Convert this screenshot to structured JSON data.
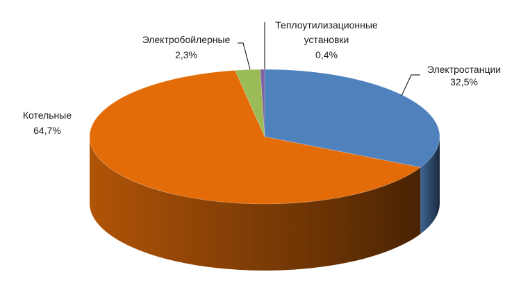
{
  "chart_data": {
    "type": "pie",
    "title": "",
    "slices": [
      {
        "label": "Электростанции",
        "value": 32.5,
        "value_label": "32,5%",
        "color": "#4f81bd"
      },
      {
        "label": "Котельные",
        "value": 64.7,
        "value_label": "64,7%",
        "color": "#e36c09"
      },
      {
        "label": "Электробойлерные",
        "value": 2.3,
        "value_label": "2,3%",
        "color": "#9bbb59"
      },
      {
        "label": "Теплоутилизационные установки",
        "value": 0.4,
        "value_label": "0,4%",
        "color": "#8064a2"
      }
    ],
    "labels": {
      "electro_line1": "Электростанции",
      "electro_line2": "32,5%",
      "kotel_line1": "Котельные",
      "kotel_line2": "64,7%",
      "boiler_line1": "Электробойлерные",
      "boiler_line2": "2,3%",
      "teplo_line1": "Теплоутилизационные",
      "teplo_line2": "установки",
      "teplo_line3": "0,4%"
    },
    "style": "3d"
  }
}
